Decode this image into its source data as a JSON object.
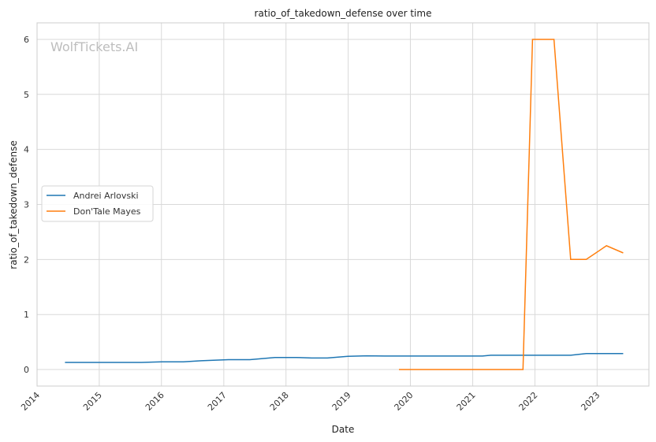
{
  "chart_data": {
    "type": "line",
    "title": "ratio_of_takedown_defense over time",
    "xlabel": "Date",
    "ylabel": "ratio_of_takedown_defense",
    "watermark": "WolfTickets.AI",
    "xlim": [
      "2014-01-01",
      "2023-11-01"
    ],
    "ylim": [
      -0.3,
      6.3
    ],
    "x_ticks": [
      "2014",
      "2015",
      "2016",
      "2017",
      "2018",
      "2019",
      "2020",
      "2021",
      "2022",
      "2023"
    ],
    "y_ticks": [
      "0",
      "1",
      "2",
      "3",
      "4",
      "5",
      "6"
    ],
    "grid": true,
    "legend_position": "center-left",
    "series": [
      {
        "name": "Andrei Arlovski",
        "color": "#1f77b4",
        "points": [
          [
            "2014-06-14",
            0.13
          ],
          [
            "2014-09-06",
            0.13
          ],
          [
            "2015-01-03",
            0.13
          ],
          [
            "2015-05-30",
            0.13
          ],
          [
            "2015-09-05",
            0.13
          ],
          [
            "2016-01-02",
            0.14
          ],
          [
            "2016-05-08",
            0.14
          ],
          [
            "2016-08-20",
            0.16
          ],
          [
            "2017-01-28",
            0.18
          ],
          [
            "2017-06-03",
            0.18
          ],
          [
            "2017-10-28",
            0.22
          ],
          [
            "2018-03-03",
            0.22
          ],
          [
            "2018-06-01",
            0.21
          ],
          [
            "2018-09-01",
            0.21
          ],
          [
            "2018-12-30",
            0.24
          ],
          [
            "2019-04-20",
            0.25
          ],
          [
            "2019-08-03",
            0.245
          ],
          [
            "2019-10-26",
            0.245
          ],
          [
            "2020-01-25",
            0.245
          ],
          [
            "2020-05-30",
            0.245
          ],
          [
            "2020-10-10",
            0.245
          ],
          [
            "2021-02-27",
            0.245
          ],
          [
            "2021-04-17",
            0.26
          ],
          [
            "2021-10-16",
            0.26
          ],
          [
            "2022-04-30",
            0.26
          ],
          [
            "2022-07-30",
            0.26
          ],
          [
            "2022-10-29",
            0.29
          ],
          [
            "2023-02-25",
            0.29
          ],
          [
            "2023-06-03",
            0.29
          ]
        ]
      },
      {
        "name": "Don'Tale Mayes",
        "color": "#ff7f0e",
        "points": [
          [
            "2019-10-26",
            0.0
          ],
          [
            "2020-08-01",
            0.0
          ],
          [
            "2021-03-06",
            0.0
          ],
          [
            "2021-10-23",
            0.0
          ],
          [
            "2021-12-18",
            6.0
          ],
          [
            "2022-04-23",
            6.0
          ],
          [
            "2022-07-30",
            2.0
          ],
          [
            "2022-10-29",
            2.0
          ],
          [
            "2023-02-25",
            2.25
          ],
          [
            "2023-06-03",
            2.12
          ]
        ]
      }
    ]
  }
}
